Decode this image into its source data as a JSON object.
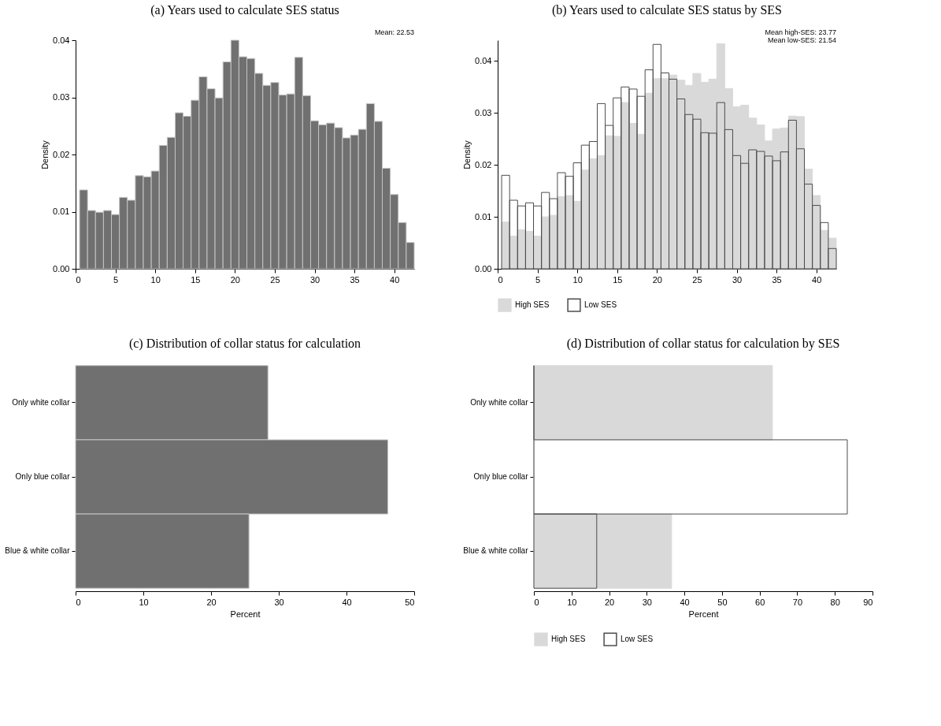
{
  "chart_data": [
    {
      "type": "histogram",
      "title": "(a) Years used to calculate SES status",
      "ylabel": "Density",
      "annotations": [
        "Mean:  22.53"
      ],
      "bins": [
        0.5,
        1.5,
        2.5,
        3.5,
        4.5,
        5.5,
        6.5,
        7.5,
        8.5,
        9.5,
        10.5,
        11.5,
        12.5,
        13.5,
        14.5,
        15.5,
        16.5,
        17.5,
        18.5,
        19.5,
        20.5,
        21.5,
        22.5,
        23.5,
        24.5,
        25.5,
        26.5,
        27.5,
        28.5,
        29.5,
        30.5,
        31.5,
        32.5,
        33.5,
        34.5,
        35.5,
        36.5,
        37.5,
        38.5,
        39.5,
        40.5,
        41.5,
        42.5
      ],
      "values": [
        0.0138,
        0.0102,
        0.0099,
        0.0102,
        0.0095,
        0.0125,
        0.012,
        0.0163,
        0.0161,
        0.0171,
        0.0216,
        0.023,
        0.0273,
        0.0267,
        0.0295,
        0.0336,
        0.0315,
        0.0299,
        0.0362,
        0.04,
        0.0371,
        0.0368,
        0.0342,
        0.0321,
        0.0326,
        0.0304,
        0.0306,
        0.037,
        0.0303,
        0.0259,
        0.0252,
        0.0255,
        0.0247,
        0.0229,
        0.0234,
        0.0244,
        0.0289,
        0.0258,
        0.0176,
        0.013,
        0.0081,
        0.0046
      ],
      "color": "#707070",
      "xlim": [
        0,
        42.5
      ],
      "xticks": [
        0,
        5,
        10,
        15,
        20,
        25,
        30,
        35,
        40
      ],
      "ylim": [
        0,
        0.04
      ],
      "yticks": [
        {
          "value": 0,
          "label": "0.00"
        },
        0.01,
        0.02,
        0.03,
        0.04
      ],
      "grid": false,
      "legend": false
    },
    {
      "type": "histogram",
      "title": "(b) Years used to calculate SES status by SES",
      "ylabel": "Density",
      "annotations": [
        "Mean high-SES:  23.77",
        "Mean low-SES:  21.54"
      ],
      "bins": [
        0.5,
        1.5,
        2.5,
        3.5,
        4.5,
        5.5,
        6.5,
        7.5,
        8.5,
        9.5,
        10.5,
        11.5,
        12.5,
        13.5,
        14.5,
        15.5,
        16.5,
        17.5,
        18.5,
        19.5,
        20.5,
        21.5,
        22.5,
        23.5,
        24.5,
        25.5,
        26.5,
        27.5,
        28.5,
        29.5,
        30.5,
        31.5,
        32.5,
        33.5,
        34.5,
        35.5,
        36.5,
        37.5,
        38.5,
        39.5,
        40.5,
        41.5,
        42.5
      ],
      "series": [
        {
          "name": "High SES",
          "color": "#d9d9d9",
          "values": [
            0.009,
            0.0063,
            0.0075,
            0.0072,
            0.0063,
            0.01,
            0.0103,
            0.0139,
            0.0141,
            0.013,
            0.019,
            0.0212,
            0.0218,
            0.0256,
            0.0255,
            0.032,
            0.028,
            0.0259,
            0.0338,
            0.0366,
            0.0366,
            0.0373,
            0.0363,
            0.0353,
            0.0376,
            0.0359,
            0.0365,
            0.0433,
            0.0347,
            0.0312,
            0.0315,
            0.029,
            0.0277,
            0.0246,
            0.0269,
            0.0271,
            0.0294,
            0.0293,
            0.0192,
            0.0141,
            0.0074,
            0.0059
          ]
        },
        {
          "name": "Low SES",
          "color": "#4d4d4d",
          "values": [
            0.018,
            0.0132,
            0.0121,
            0.0127,
            0.0121,
            0.0147,
            0.0135,
            0.0185,
            0.0178,
            0.0204,
            0.0238,
            0.0245,
            0.0318,
            0.0276,
            0.0329,
            0.035,
            0.0346,
            0.0332,
            0.0383,
            0.0432,
            0.0377,
            0.0365,
            0.0327,
            0.0297,
            0.0288,
            0.0262,
            0.0261,
            0.032,
            0.0268,
            0.0218,
            0.0203,
            0.0229,
            0.0226,
            0.0217,
            0.0208,
            0.0225,
            0.0286,
            0.0231,
            0.0163,
            0.0122,
            0.0089,
            0.0039
          ]
        }
      ],
      "xlim": [
        0,
        42.5
      ],
      "xticks": [
        0,
        5,
        10,
        15,
        20,
        25,
        30,
        35,
        40
      ],
      "ylim": [
        0,
        0.044
      ],
      "yticks": [
        {
          "value": 0,
          "label": "0.00"
        },
        0.01,
        0.02,
        0.03,
        0.04
      ],
      "grid": false,
      "legend": "bottom"
    },
    {
      "type": "bar",
      "orientation": "horizontal",
      "title": "(c) Distribution of collar status for calculation",
      "xlabel": "Percent",
      "categories": [
        "Only white collar",
        "Only blue collar",
        "Blue & white collar"
      ],
      "values": [
        28.4,
        46.1,
        25.6
      ],
      "color": "#707070",
      "xlim": [
        0,
        50
      ],
      "xticks": [
        0,
        10,
        20,
        30,
        40,
        50
      ],
      "grid": false,
      "legend": false
    },
    {
      "type": "bar",
      "orientation": "horizontal",
      "title": "(d) Distribution of collar status for calculation by SES",
      "xlabel": "Percent",
      "categories": [
        "Only white collar",
        "Only blue collar",
        "Blue & white collar"
      ],
      "series": [
        {
          "name": "High SES",
          "color": "#d9d9d9",
          "values": [
            63.4,
            0,
            36.6
          ]
        },
        {
          "name": "Low SES",
          "color": "#4d4d4d",
          "values": [
            0,
            83.3,
            16.7
          ]
        }
      ],
      "xlim": [
        0,
        90
      ],
      "xticks": [
        0,
        10,
        20,
        30,
        40,
        50,
        60,
        70,
        80,
        90
      ],
      "grid": false,
      "legend": "bottom"
    }
  ]
}
